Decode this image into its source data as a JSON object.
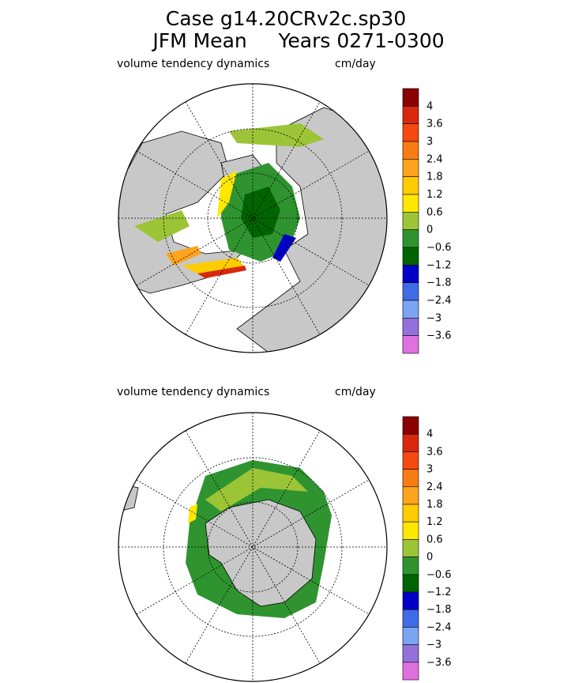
{
  "title_lines": [
    "Case g14.20CRv2c.sp30",
    "JFM Mean     Years 0271-0300"
  ],
  "panels": [
    {
      "label": "volume tendency dynamics",
      "units": "cm/day",
      "colorbar": {
        "labels": [
          "4",
          "3.6",
          "3",
          "2.4",
          "1.8",
          "1.2",
          "0.6",
          "0",
          "−0.6",
          "−1.2",
          "−1.8",
          "−2.4",
          "−3",
          "−3.6"
        ],
        "colors": [
          "#8b0000",
          "#d8280e",
          "#f44a10",
          "#f87c14",
          "#fca41e",
          "#ffcc00",
          "#ffe800",
          "#9cc437",
          "#2f9430",
          "#006400",
          "#0000c8",
          "#3f6ce6",
          "#7ba4f5",
          "#9370db",
          "#e070e0"
        ]
      }
    },
    {
      "label": "volume tendency dynamics",
      "units": "cm/day",
      "colorbar": {
        "labels": [
          "4",
          "3.6",
          "3",
          "2.4",
          "1.8",
          "1.2",
          "0.6",
          "0",
          "−0.6",
          "−1.2",
          "−1.8",
          "−2.4",
          "−3",
          "−3.6"
        ],
        "colors": [
          "#8b0000",
          "#d8280e",
          "#f44a10",
          "#f87c14",
          "#fca41e",
          "#ffcc00",
          "#ffe800",
          "#9cc437",
          "#2f9430",
          "#006400",
          "#0000c8",
          "#3f6ce6",
          "#7ba4f5",
          "#9370db",
          "#e070e0"
        ]
      }
    }
  ]
}
